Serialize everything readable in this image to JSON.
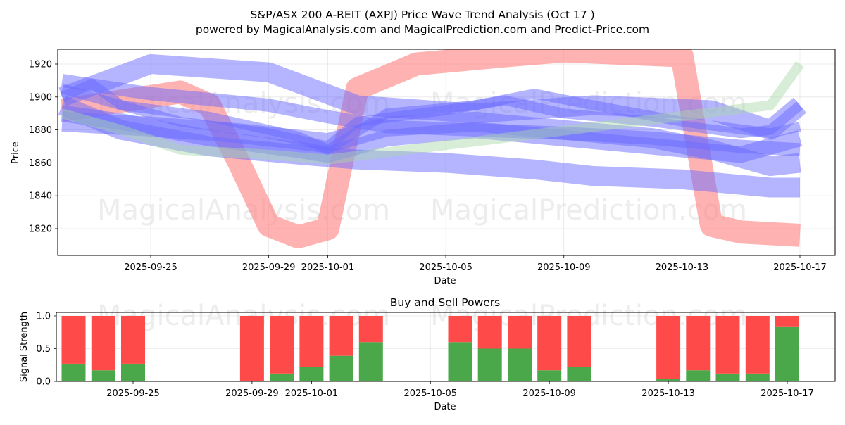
{
  "title": "S&P/ASX 200 A-REIT (AXPJ) Price Wave Trend Analysis (Oct 17 )",
  "subtitle": "powered by MagicalAnalysis.com and MagicalPrediction.com and Predict-Price.com",
  "watermarks": [
    "MagicalAnalysis.com",
    "MagicalPrediction.com"
  ],
  "colors": {
    "red_band": "#ff7f7f",
    "blue_band": "#6a6aff",
    "green_band": "#a8d8a8",
    "buy": "#4aa84a",
    "sell": "#ff4a4a"
  },
  "chart_data": [
    {
      "type": "area",
      "title": "",
      "xlabel": "Date",
      "ylabel": "Price",
      "x_ticks": [
        "2025-09-25",
        "2025-09-29",
        "2025-10-01",
        "2025-10-05",
        "2025-10-09",
        "2025-10-13",
        "2025-10-17"
      ],
      "y_ticks": [
        1820,
        1840,
        1860,
        1880,
        1900,
        1920
      ],
      "xlim": [
        "2025-09-22",
        "2025-10-18"
      ],
      "ylim": [
        1804,
        1930
      ],
      "grid": true,
      "series": [
        {
          "color": "red",
          "width": 14,
          "points": [
            [
              "2025-09-22",
              1892
            ],
            [
              "2025-09-26",
              1903
            ],
            [
              "2025-09-27",
              1895
            ],
            [
              "2025-09-28",
              1860
            ],
            [
              "2025-09-29",
              1822
            ],
            [
              "2025-09-30",
              1815
            ],
            [
              "2025-10-01",
              1820
            ],
            [
              "2025-10-02",
              1905
            ],
            [
              "2025-10-04",
              1920
            ],
            [
              "2025-10-07",
              1925
            ],
            [
              "2025-10-09",
              1928
            ],
            [
              "2025-10-13",
              1925
            ],
            [
              "2025-10-14",
              1822
            ],
            [
              "2025-10-15",
              1818
            ],
            [
              "2025-10-17",
              1816
            ]
          ]
        },
        {
          "color": "blue",
          "width": 12,
          "points": [
            [
              "2025-09-22",
              1900
            ],
            [
              "2025-09-25",
              1920
            ],
            [
              "2025-09-29",
              1915
            ],
            [
              "2025-10-02",
              1895
            ],
            [
              "2025-10-06",
              1890
            ],
            [
              "2025-10-10",
              1895
            ],
            [
              "2025-10-14",
              1892
            ],
            [
              "2025-10-16",
              1880
            ],
            [
              "2025-10-17",
              1895
            ]
          ]
        },
        {
          "color": "blue",
          "width": 12,
          "points": [
            [
              "2025-09-22",
              1895
            ],
            [
              "2025-09-24",
              1880
            ],
            [
              "2025-09-27",
              1870
            ],
            [
              "2025-09-30",
              1865
            ],
            [
              "2025-10-02",
              1862
            ],
            [
              "2025-10-05",
              1860
            ],
            [
              "2025-10-08",
              1856
            ],
            [
              "2025-10-10",
              1852
            ],
            [
              "2025-10-13",
              1850
            ],
            [
              "2025-10-16",
              1845
            ],
            [
              "2025-10-17",
              1845
            ]
          ]
        },
        {
          "color": "blue",
          "width": 12,
          "points": [
            [
              "2025-09-22",
              1885
            ],
            [
              "2025-09-25",
              1882
            ],
            [
              "2025-09-28",
              1878
            ],
            [
              "2025-10-01",
              1872
            ],
            [
              "2025-10-03",
              1882
            ],
            [
              "2025-10-06",
              1885
            ],
            [
              "2025-10-09",
              1880
            ],
            [
              "2025-10-12",
              1875
            ],
            [
              "2025-10-14",
              1868
            ],
            [
              "2025-10-16",
              1858
            ],
            [
              "2025-10-17",
              1860
            ]
          ]
        },
        {
          "color": "blue",
          "width": 8,
          "points": [
            [
              "2025-09-22",
              1910
            ],
            [
              "2025-09-25",
              1902
            ],
            [
              "2025-09-29",
              1895
            ],
            [
              "2025-10-01",
              1888
            ],
            [
              "2025-10-03",
              1882
            ],
            [
              "2025-10-06",
              1880
            ],
            [
              "2025-10-09",
              1878
            ],
            [
              "2025-10-12",
              1875
            ],
            [
              "2025-10-15",
              1870
            ],
            [
              "2025-10-17",
              1868
            ]
          ]
        },
        {
          "color": "blue",
          "width": 6,
          "points": [
            [
              "2025-09-22",
              1900
            ],
            [
              "2025-09-23",
              1908
            ],
            [
              "2025-09-24",
              1895
            ],
            [
              "2025-09-26",
              1885
            ],
            [
              "2025-09-29",
              1878
            ],
            [
              "2025-10-01",
              1870
            ],
            [
              "2025-10-02",
              1885
            ],
            [
              "2025-10-05",
              1892
            ],
            [
              "2025-10-07",
              1898
            ],
            [
              "2025-10-09",
              1890
            ],
            [
              "2025-10-12",
              1885
            ],
            [
              "2025-10-15",
              1878
            ],
            [
              "2025-10-16",
              1880
            ],
            [
              "2025-10-17",
              1895
            ]
          ]
        },
        {
          "color": "blue",
          "width": 6,
          "points": [
            [
              "2025-09-22",
              1905
            ],
            [
              "2025-09-24",
              1895
            ],
            [
              "2025-09-27",
              1888
            ],
            [
              "2025-09-30",
              1876
            ],
            [
              "2025-10-01",
              1868
            ],
            [
              "2025-10-03",
              1890
            ],
            [
              "2025-10-06",
              1895
            ],
            [
              "2025-10-08",
              1902
            ],
            [
              "2025-10-10",
              1895
            ],
            [
              "2025-10-13",
              1885
            ],
            [
              "2025-10-16",
              1878
            ],
            [
              "2025-10-17",
              1882
            ]
          ]
        },
        {
          "color": "blue",
          "width": 10,
          "points": [
            [
              "2025-09-22",
              1890
            ],
            [
              "2025-09-24",
              1885
            ],
            [
              "2025-09-27",
              1875
            ],
            [
              "2025-09-30",
              1868
            ],
            [
              "2025-10-01",
              1865
            ],
            [
              "2025-10-03",
              1875
            ],
            [
              "2025-10-06",
              1880
            ],
            [
              "2025-10-09",
              1875
            ],
            [
              "2025-10-12",
              1870
            ],
            [
              "2025-10-15",
              1865
            ],
            [
              "2025-10-17",
              1875
            ]
          ]
        },
        {
          "color": "green",
          "width": 6,
          "points": [
            [
              "2025-09-22",
              1890
            ],
            [
              "2025-09-24",
              1880
            ],
            [
              "2025-09-26",
              1868
            ],
            [
              "2025-09-29",
              1865
            ],
            [
              "2025-10-01",
              1862
            ],
            [
              "2025-10-16",
              1895
            ],
            [
              "2025-10-17",
              1920
            ]
          ]
        }
      ]
    },
    {
      "type": "bar",
      "title": "Buy and Sell Powers",
      "xlabel": "Date",
      "ylabel": "Signal Strength",
      "x_ticks": [
        "2025-09-25",
        "2025-09-29",
        "2025-10-01",
        "2025-10-05",
        "2025-10-09",
        "2025-10-13",
        "2025-10-17"
      ],
      "y_ticks": [
        "0.0",
        "0.5",
        "1.0"
      ],
      "ylim": [
        0,
        1.05
      ],
      "grid": true,
      "categories": [
        "2025-09-23",
        "2025-09-24",
        "2025-09-25",
        "2025-09-29",
        "2025-09-30",
        "2025-10-01",
        "2025-10-02",
        "2025-10-03",
        "2025-10-06",
        "2025-10-07",
        "2025-10-08",
        "2025-10-09",
        "2025-10-10",
        "2025-10-13",
        "2025-10-14",
        "2025-10-15",
        "2025-10-16",
        "2025-10-17"
      ],
      "series": [
        {
          "values": [
            0.27,
            0.17,
            0.27,
            0.0,
            0.12,
            0.22,
            0.39,
            0.6,
            0.6,
            0.5,
            0.5,
            0.17,
            0.22,
            0.04,
            0.17,
            0.12,
            0.12,
            0.83
          ]
        },
        {
          "values": [
            0.73,
            0.83,
            0.73,
            1.0,
            0.88,
            0.78,
            0.61,
            0.4,
            0.4,
            0.5,
            0.5,
            0.83,
            0.78,
            0.96,
            0.83,
            0.88,
            0.88,
            0.17
          ]
        }
      ]
    }
  ]
}
